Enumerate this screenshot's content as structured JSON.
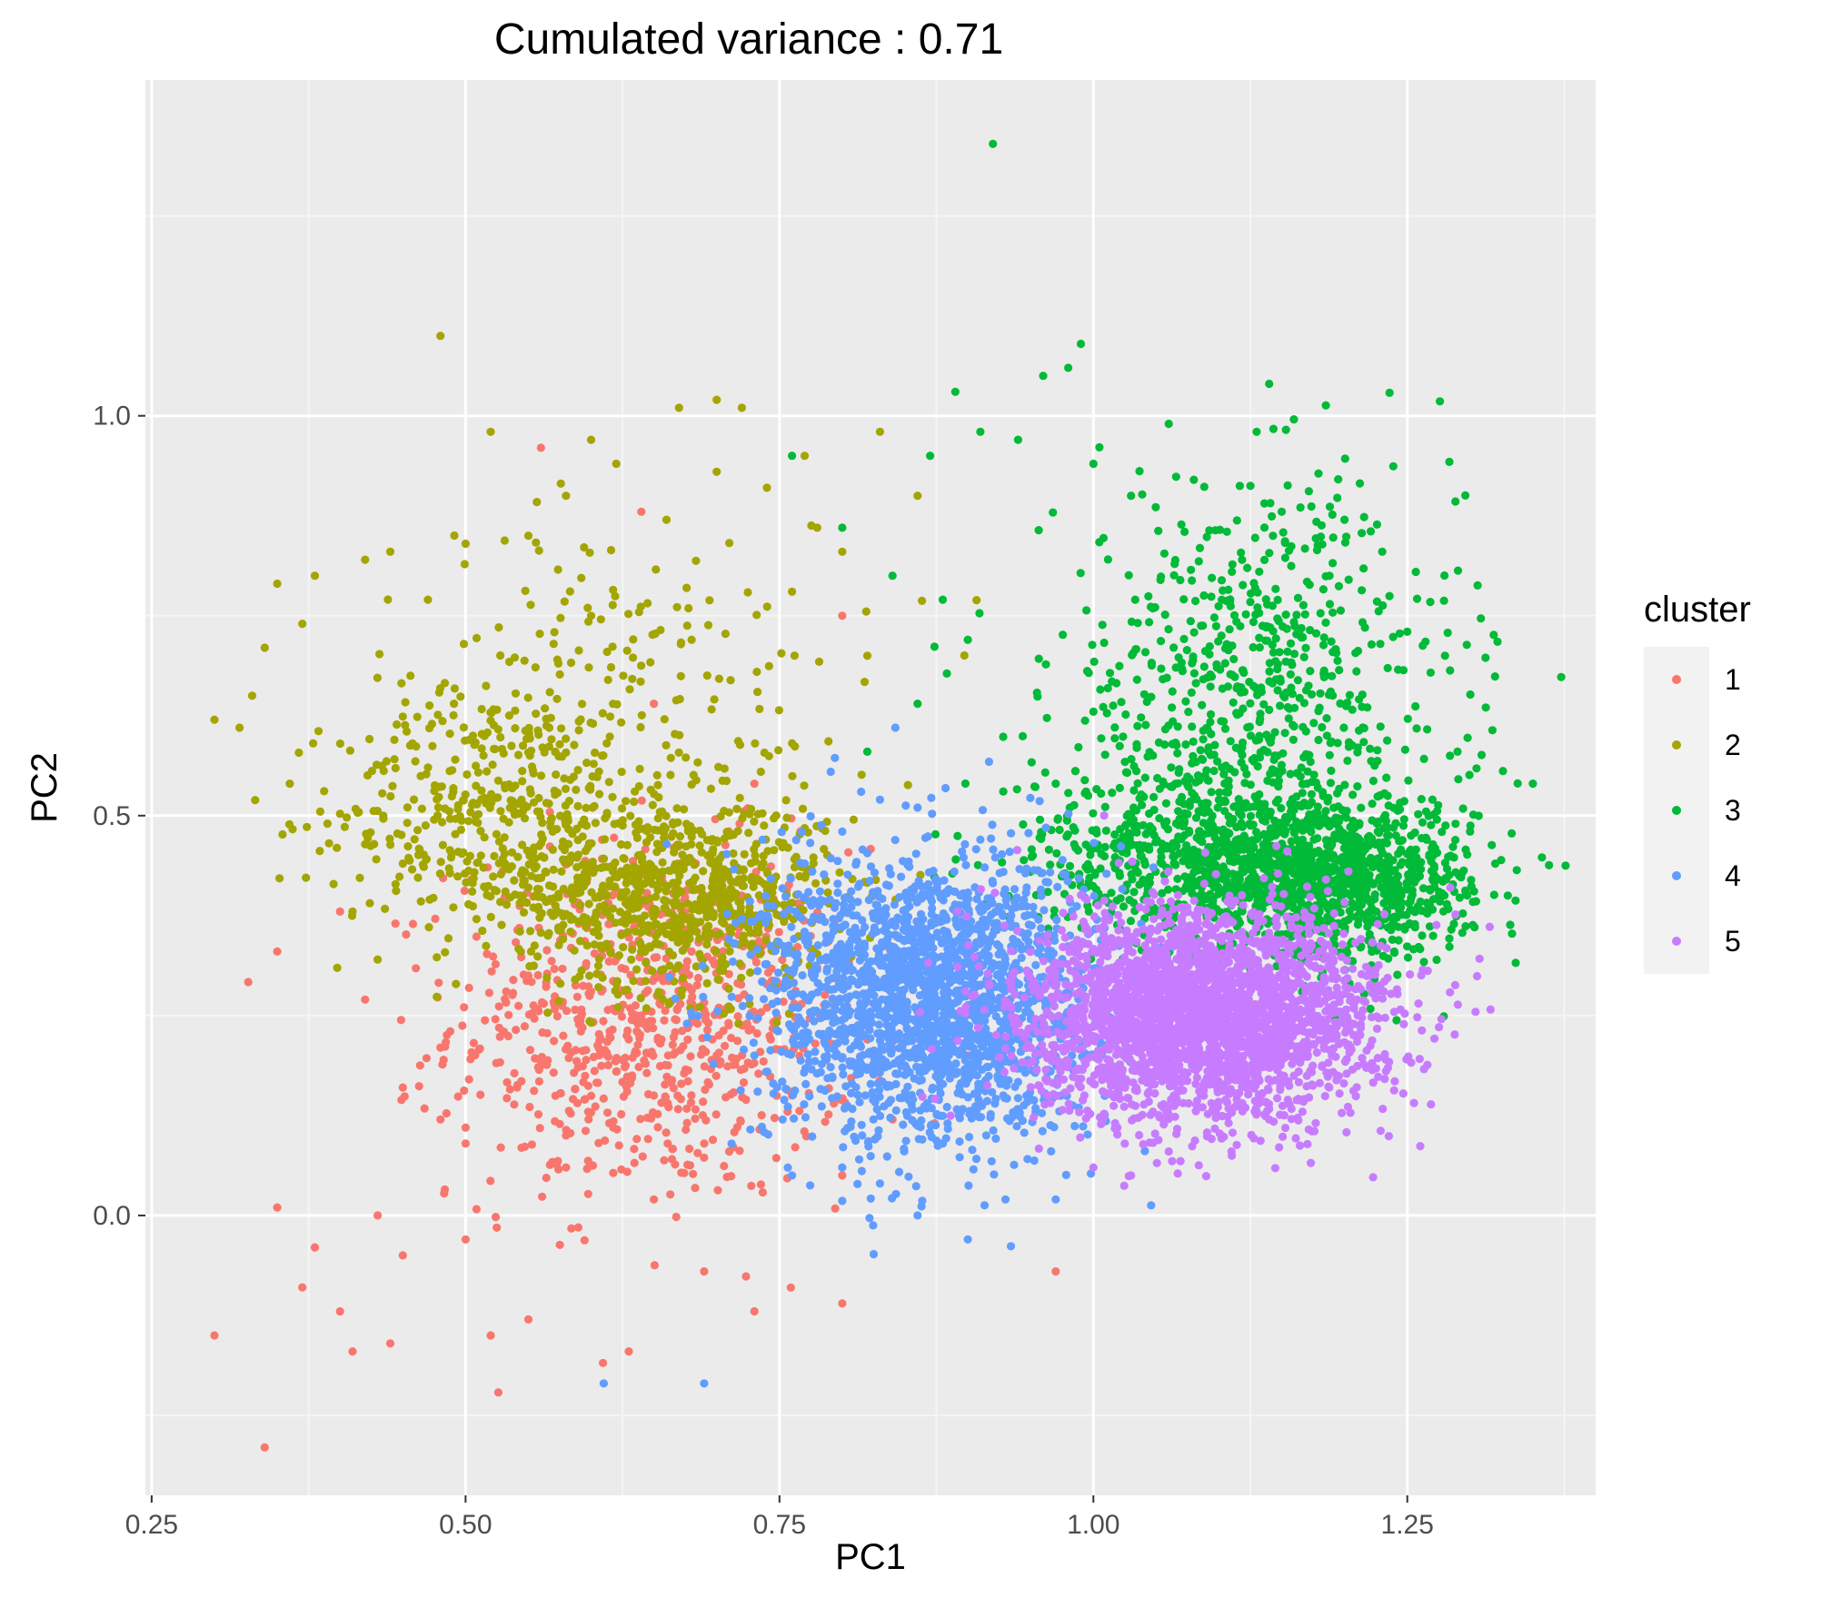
{
  "chart_data": {
    "type": "scatter",
    "title": "Cumulated variance : 0.71",
    "xlabel": "PC1",
    "ylabel": "PC2",
    "xlim": [
      0.245,
      1.4
    ],
    "ylim": [
      -0.35,
      1.42
    ],
    "x_ticks": [
      0.25,
      0.5,
      0.75,
      1.0,
      1.25
    ],
    "x_tick_labels": [
      "0.25",
      "0.50",
      "0.75",
      "1.00",
      "1.25"
    ],
    "y_ticks": [
      0.0,
      0.5,
      1.0
    ],
    "y_tick_labels": [
      "0.0",
      "0.5",
      "1.0"
    ],
    "grid": true,
    "legend_position": "right",
    "legend_title": "cluster",
    "series": [
      {
        "name": "1",
        "color": "#F8766D",
        "points": [
          [
            0.3,
            -0.15
          ],
          [
            0.34,
            -0.29
          ],
          [
            0.35,
            0.01
          ],
          [
            0.37,
            -0.09
          ],
          [
            0.38,
            -0.04
          ],
          [
            0.4,
            -0.12
          ],
          [
            0.41,
            -0.17
          ],
          [
            0.43,
            0.0
          ],
          [
            0.44,
            -0.16
          ],
          [
            0.45,
            -0.05
          ],
          [
            0.48,
            0.12
          ],
          [
            0.5,
            -0.03
          ],
          [
            0.52,
            -0.15
          ],
          [
            0.55,
            -0.13
          ],
          [
            0.58,
            0.06
          ],
          [
            0.63,
            -0.17
          ],
          [
            0.65,
            0.02
          ],
          [
            0.69,
            -0.07
          ],
          [
            0.73,
            -0.12
          ],
          [
            0.8,
            -0.11
          ],
          [
            0.97,
            -0.07
          ],
          [
            0.35,
            0.33
          ],
          [
            0.4,
            0.38
          ],
          [
            0.42,
            0.27
          ],
          [
            0.45,
            0.16
          ],
          [
            0.48,
            0.21
          ],
          [
            0.5,
            0.09
          ],
          [
            0.53,
            0.23
          ],
          [
            0.55,
            0.3
          ],
          [
            0.56,
            0.96
          ],
          [
            0.58,
            0.1
          ],
          [
            0.6,
            0.28
          ],
          [
            0.62,
            0.18
          ],
          [
            0.64,
            0.25
          ],
          [
            0.65,
            0.64
          ],
          [
            0.66,
            0.14
          ],
          [
            0.68,
            0.33
          ],
          [
            0.7,
            0.2
          ],
          [
            0.71,
            0.08
          ],
          [
            0.72,
            0.4
          ],
          [
            0.74,
            0.26
          ],
          [
            0.76,
            0.15
          ],
          [
            0.78,
            0.31
          ],
          [
            0.8,
            0.05
          ],
          [
            0.82,
            0.22
          ],
          [
            0.84,
            0.12
          ],
          [
            0.86,
            0.36
          ],
          [
            0.88,
            0.3
          ],
          [
            0.9,
            0.2
          ],
          [
            0.64,
            0.88
          ],
          [
            0.73,
            0.54
          ],
          [
            0.8,
            0.75
          ]
        ],
        "clusters": [
          {
            "cx": 0.65,
            "cy": 0.24,
            "sx": 0.08,
            "sy": 0.11,
            "n": 800
          }
        ]
      },
      {
        "name": "2",
        "color": "#A3A500",
        "points": [
          [
            0.48,
            1.1
          ],
          [
            0.52,
            0.98
          ],
          [
            0.67,
            1.01
          ],
          [
            0.7,
            1.02
          ],
          [
            0.72,
            1.01
          ],
          [
            0.77,
            0.95
          ],
          [
            0.6,
            0.97
          ],
          [
            0.3,
            0.62
          ],
          [
            0.32,
            0.61
          ],
          [
            0.33,
            0.65
          ],
          [
            0.35,
            0.79
          ],
          [
            0.37,
            0.74
          ],
          [
            0.38,
            0.8
          ],
          [
            0.42,
            0.82
          ],
          [
            0.44,
            0.83
          ],
          [
            0.47,
            0.77
          ],
          [
            0.5,
            0.84
          ],
          [
            0.55,
            0.85
          ],
          [
            0.58,
            0.9
          ],
          [
            0.62,
            0.94
          ],
          [
            0.66,
            0.87
          ],
          [
            0.7,
            0.93
          ],
          [
            0.74,
            0.91
          ],
          [
            0.78,
            0.86
          ],
          [
            0.8,
            0.83
          ],
          [
            0.83,
            0.98
          ],
          [
            0.86,
            0.9
          ],
          [
            0.34,
            0.71
          ],
          [
            0.36,
            0.54
          ],
          [
            0.39,
            0.49
          ],
          [
            0.41,
            0.38
          ],
          [
            0.43,
            0.32
          ],
          [
            0.45,
            0.44
          ],
          [
            0.6,
            0.75
          ],
          [
            0.68,
            0.72
          ],
          [
            0.76,
            0.78
          ],
          [
            0.82,
            0.7
          ]
        ],
        "clusters": [
          {
            "cx": 0.52,
            "cy": 0.5,
            "sx": 0.06,
            "sy": 0.08,
            "n": 380
          },
          {
            "cx": 0.67,
            "cy": 0.4,
            "sx": 0.06,
            "sy": 0.06,
            "n": 750
          },
          {
            "cx": 0.62,
            "cy": 0.63,
            "sx": 0.1,
            "sy": 0.12,
            "n": 230
          }
        ]
      },
      {
        "name": "3",
        "color": "#00BA38",
        "points": [
          [
            0.92,
            1.34
          ],
          [
            0.99,
            1.09
          ],
          [
            0.98,
            1.06
          ],
          [
            0.96,
            1.05
          ],
          [
            1.14,
            1.04
          ],
          [
            0.89,
            1.03
          ],
          [
            0.91,
            0.98
          ],
          [
            1.06,
            0.99
          ],
          [
            1.13,
            0.98
          ],
          [
            0.87,
            0.95
          ],
          [
            0.94,
            0.97
          ],
          [
            1.0,
            0.94
          ],
          [
            1.03,
            0.9
          ],
          [
            1.08,
            0.92
          ],
          [
            1.15,
            0.88
          ],
          [
            1.2,
            0.87
          ],
          [
            1.23,
            0.83
          ],
          [
            0.8,
            0.86
          ],
          [
            0.84,
            0.8
          ],
          [
            0.88,
            0.77
          ],
          [
            0.9,
            0.72
          ],
          [
            0.86,
            0.64
          ],
          [
            0.82,
            0.58
          ],
          [
            1.27,
            0.52
          ],
          [
            1.3,
            0.48
          ],
          [
            1.33,
            0.4
          ],
          [
            1.35,
            0.54
          ],
          [
            1.28,
            0.7
          ],
          [
            1.25,
            0.73
          ],
          [
            1.29,
            0.58
          ],
          [
            1.32,
            0.44
          ],
          [
            1.0,
            0.63
          ],
          [
            0.97,
            0.54
          ],
          [
            0.76,
            0.95
          ]
        ],
        "clusters": [
          {
            "cx": 1.13,
            "cy": 0.65,
            "sx": 0.08,
            "sy": 0.13,
            "n": 700
          },
          {
            "cx": 1.18,
            "cy": 0.42,
            "sx": 0.06,
            "sy": 0.05,
            "n": 1300
          },
          {
            "cx": 1.05,
            "cy": 0.46,
            "sx": 0.06,
            "sy": 0.05,
            "n": 350
          }
        ]
      },
      {
        "name": "4",
        "color": "#619CFF",
        "points": [
          [
            0.61,
            -0.21
          ],
          [
            0.69,
            -0.21
          ],
          [
            0.9,
            -0.03
          ],
          [
            0.86,
            0.0
          ],
          [
            0.93,
            0.02
          ],
          [
            0.97,
            0.02
          ],
          [
            0.83,
            0.04
          ],
          [
            0.8,
            0.06
          ],
          [
            0.88,
            0.09
          ],
          [
            0.86,
            0.51
          ],
          [
            0.83,
            0.52
          ],
          [
            0.8,
            0.48
          ],
          [
            0.77,
            0.44
          ],
          [
            0.91,
            0.47
          ],
          [
            0.73,
            0.2
          ],
          [
            0.76,
            0.05
          ]
        ],
        "clusters": [
          {
            "cx": 0.87,
            "cy": 0.27,
            "sx": 0.065,
            "sy": 0.09,
            "n": 2100
          }
        ]
      },
      {
        "name": "5",
        "color": "#C77CFF",
        "points": [
          [
            1.0,
            0.06
          ],
          [
            1.03,
            0.05
          ],
          [
            1.06,
            0.08
          ],
          [
            1.11,
            0.08
          ],
          [
            1.14,
            0.12
          ],
          [
            1.19,
            0.2
          ],
          [
            1.2,
            0.24
          ],
          [
            1.21,
            0.27
          ],
          [
            1.22,
            0.3
          ],
          [
            1.18,
            0.33
          ]
        ],
        "clusters": [
          {
            "cx": 1.09,
            "cy": 0.25,
            "sx": 0.07,
            "sy": 0.065,
            "n": 2800
          }
        ]
      }
    ]
  }
}
